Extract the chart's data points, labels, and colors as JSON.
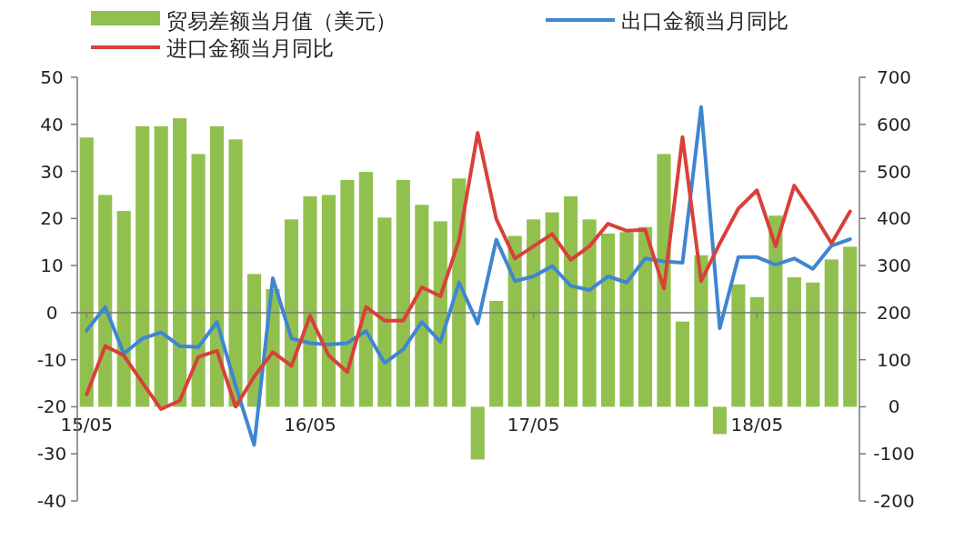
{
  "chart_data": {
    "type": "bar",
    "categories": [
      "15/05",
      null,
      null,
      null,
      null,
      null,
      null,
      null,
      null,
      null,
      null,
      null,
      "16/05",
      null,
      null,
      null,
      null,
      null,
      null,
      null,
      null,
      null,
      null,
      null,
      "17/05",
      null,
      null,
      null,
      null,
      null,
      null,
      null,
      null,
      null,
      null,
      null,
      "18/05",
      null,
      null,
      null,
      null,
      null
    ],
    "series": [
      {
        "name": "贸易差额当月值（美元）",
        "axis": "y2",
        "color": "#92c04f",
        "values": [
          572,
          450,
          416,
          596,
          596,
          613,
          537,
          596,
          568,
          282,
          250,
          398,
          447,
          450,
          482,
          499,
          402,
          482,
          429,
          394,
          485,
          -112,
          225,
          363,
          398,
          413,
          447,
          398,
          368,
          371,
          382,
          537,
          181,
          322,
          -58,
          260,
          233,
          406,
          275,
          264,
          313,
          340
        ]
      },
      {
        "name": "出口金额当月同比",
        "type": "line",
        "axis": "y",
        "color": "#3f86d0",
        "values": [
          -3.8,
          1.2,
          -8.7,
          -5.5,
          -4.2,
          -7.1,
          -7.3,
          -2.0,
          -15.5,
          -28.1,
          7.3,
          -5.5,
          -6.5,
          -6.8,
          -6.5,
          -3.9,
          -10.7,
          -7.8,
          -2.0,
          -6.2,
          6.4,
          -2.3,
          15.5,
          6.7,
          7.7,
          9.9,
          5.7,
          4.8,
          7.7,
          6.4,
          11.5,
          10.9,
          10.6,
          43.7,
          -3.3,
          11.8,
          11.8,
          10.2,
          11.5,
          9.3,
          14.2,
          15.6
        ]
      },
      {
        "name": "进口金额当月同比",
        "type": "line",
        "axis": "y",
        "color": "#d9403a",
        "values": [
          -17.4,
          -7.1,
          -9.1,
          -14.9,
          -20.5,
          -18.7,
          -9.4,
          -8.1,
          -20.0,
          -13.6,
          -8.4,
          -11.3,
          -0.7,
          -9.1,
          -12.6,
          1.2,
          -1.7,
          -1.7,
          5.4,
          3.5,
          15.4,
          38.2,
          19.9,
          11.5,
          14.1,
          16.7,
          11.2,
          14.1,
          18.9,
          17.4,
          17.6,
          5.1,
          37.3,
          6.7,
          14.7,
          22.1,
          26.0,
          14.1,
          27.0,
          21.2,
          14.7,
          21.5
        ]
      }
    ],
    "ylim": [
      -40,
      50
    ],
    "yticks": [
      -40,
      -30,
      -20,
      -10,
      0,
      10,
      20,
      30,
      40,
      50
    ],
    "y2lim": [
      -200,
      700
    ],
    "y2ticks": [
      -200,
      -100,
      0,
      100,
      200,
      300,
      400,
      500,
      600,
      700
    ],
    "legend": "top"
  }
}
